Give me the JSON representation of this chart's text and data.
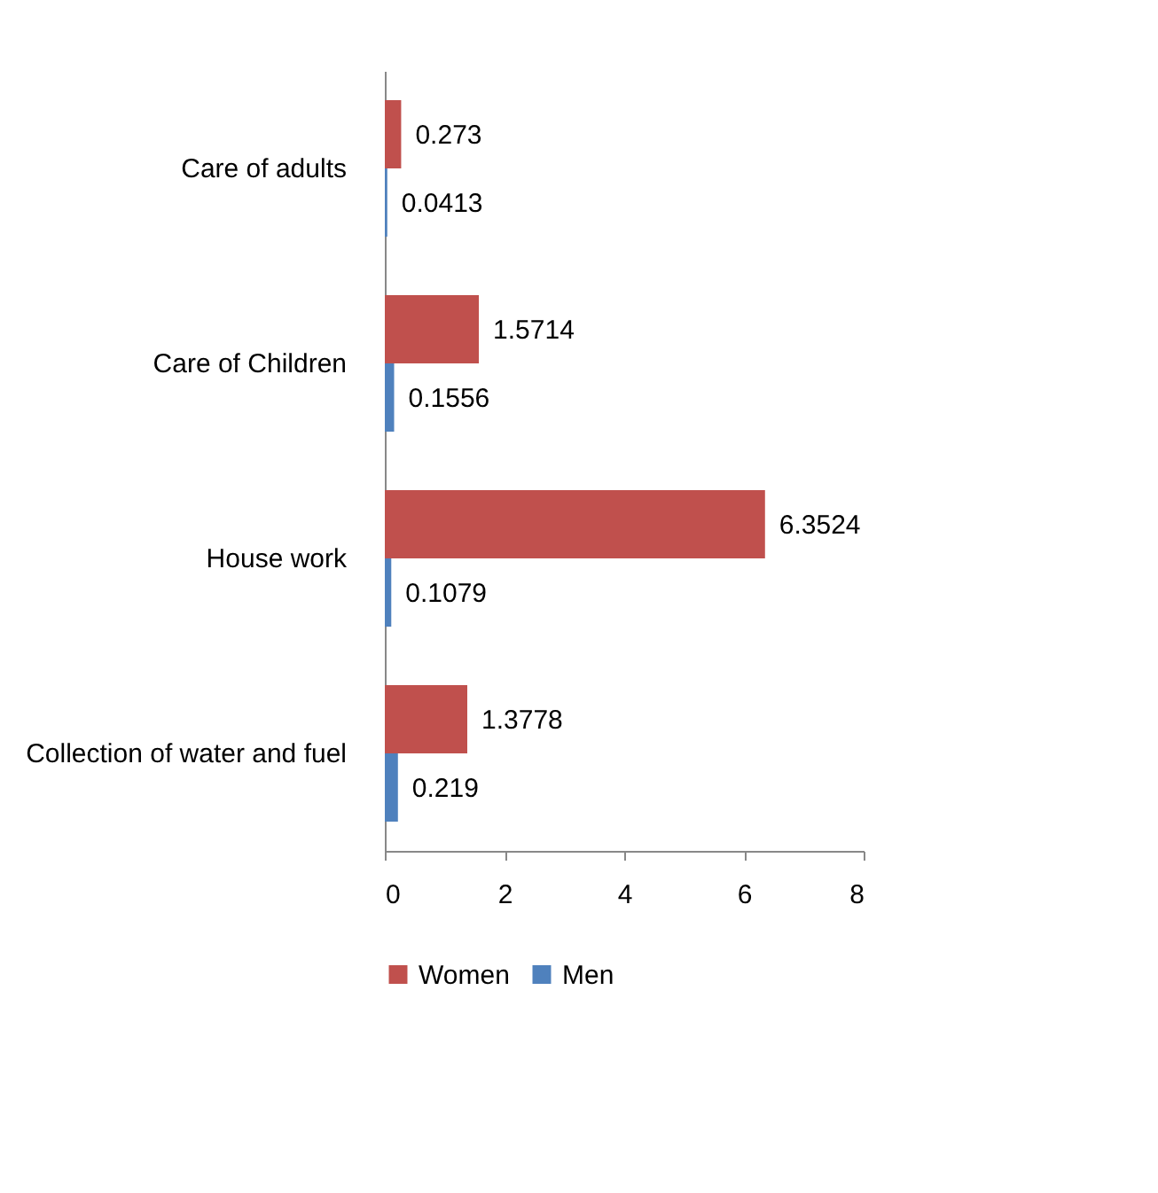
{
  "chart_data": {
    "type": "bar",
    "orientation": "horizontal",
    "categories": [
      "Care of adults",
      "Care of Children",
      "House work",
      "Collection of water and fuel"
    ],
    "series": [
      {
        "name": "Women",
        "color": "#c0504d",
        "values": [
          0.273,
          1.5714,
          6.3524,
          1.3778
        ]
      },
      {
        "name": "Men",
        "color": "#4f81bd",
        "values": [
          0.0413,
          0.1556,
          0.1079,
          0.219
        ]
      }
    ],
    "xlim": [
      0,
      8
    ],
    "xticks": [
      0,
      2,
      4,
      6,
      8
    ],
    "grid": false,
    "legend": "bottom",
    "data_labels": true
  }
}
